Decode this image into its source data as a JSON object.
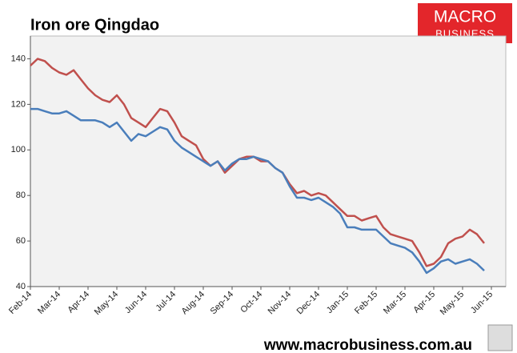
{
  "chart_data": {
    "type": "line",
    "title": "Iron ore Qingdao",
    "logo": [
      "MACRO",
      "BUSINESS"
    ],
    "footer": "www.macrobusiness.com.au",
    "categories": [
      "Feb-14",
      null,
      null,
      null,
      "Mar-14",
      null,
      null,
      null,
      "Apr-14",
      null,
      null,
      null,
      "May-14",
      null,
      null,
      null,
      "Jun-14",
      null,
      null,
      null,
      "Jul-14",
      null,
      null,
      null,
      "Aug-14",
      null,
      null,
      null,
      "Sep-14",
      null,
      null,
      null,
      "Oct-14",
      null,
      null,
      null,
      "Nov-14",
      null,
      null,
      null,
      "Dec-14",
      null,
      null,
      null,
      "Jan-15",
      null,
      null,
      null,
      "Feb-15",
      null,
      null,
      null,
      "Mar-15",
      null,
      null,
      null,
      "Apr-15",
      null,
      null,
      null,
      "May-15",
      null,
      null,
      null,
      "Jun-15"
    ],
    "series": [
      {
        "color": "#c0504d",
        "values": [
          137,
          140,
          139,
          136,
          134,
          133,
          135,
          131,
          127,
          124,
          122,
          121,
          124,
          120,
          114,
          112,
          110,
          114,
          118,
          117,
          112,
          106,
          104,
          102,
          96,
          93,
          95,
          90,
          93,
          96,
          97,
          97,
          95,
          95,
          92,
          90,
          85,
          81,
          82,
          80,
          81,
          80,
          77,
          74,
          71,
          71,
          69,
          70,
          71,
          66,
          63,
          62,
          61,
          60,
          55,
          49,
          50,
          53,
          59,
          61,
          62,
          65,
          63,
          59,
          null
        ]
      },
      {
        "color": "#4a7ebb",
        "values": [
          118,
          118,
          117,
          116,
          116,
          117,
          115,
          113,
          113,
          113,
          112,
          110,
          112,
          108,
          104,
          107,
          106,
          108,
          110,
          109,
          104,
          101,
          99,
          97,
          95,
          93,
          95,
          91,
          94,
          96,
          96,
          97,
          96,
          95,
          92,
          90,
          84,
          79,
          79,
          78,
          79,
          77,
          75,
          72,
          66,
          66,
          65,
          65,
          65,
          62,
          59,
          58,
          57,
          55,
          51,
          46,
          48,
          51,
          52,
          50,
          51,
          52,
          50,
          47,
          null
        ]
      }
    ],
    "ylim": [
      40,
      150
    ],
    "yticks": [
      40,
      60,
      80,
      100,
      120,
      140
    ],
    "grid": false,
    "plot_background": "#f2f2f2"
  }
}
